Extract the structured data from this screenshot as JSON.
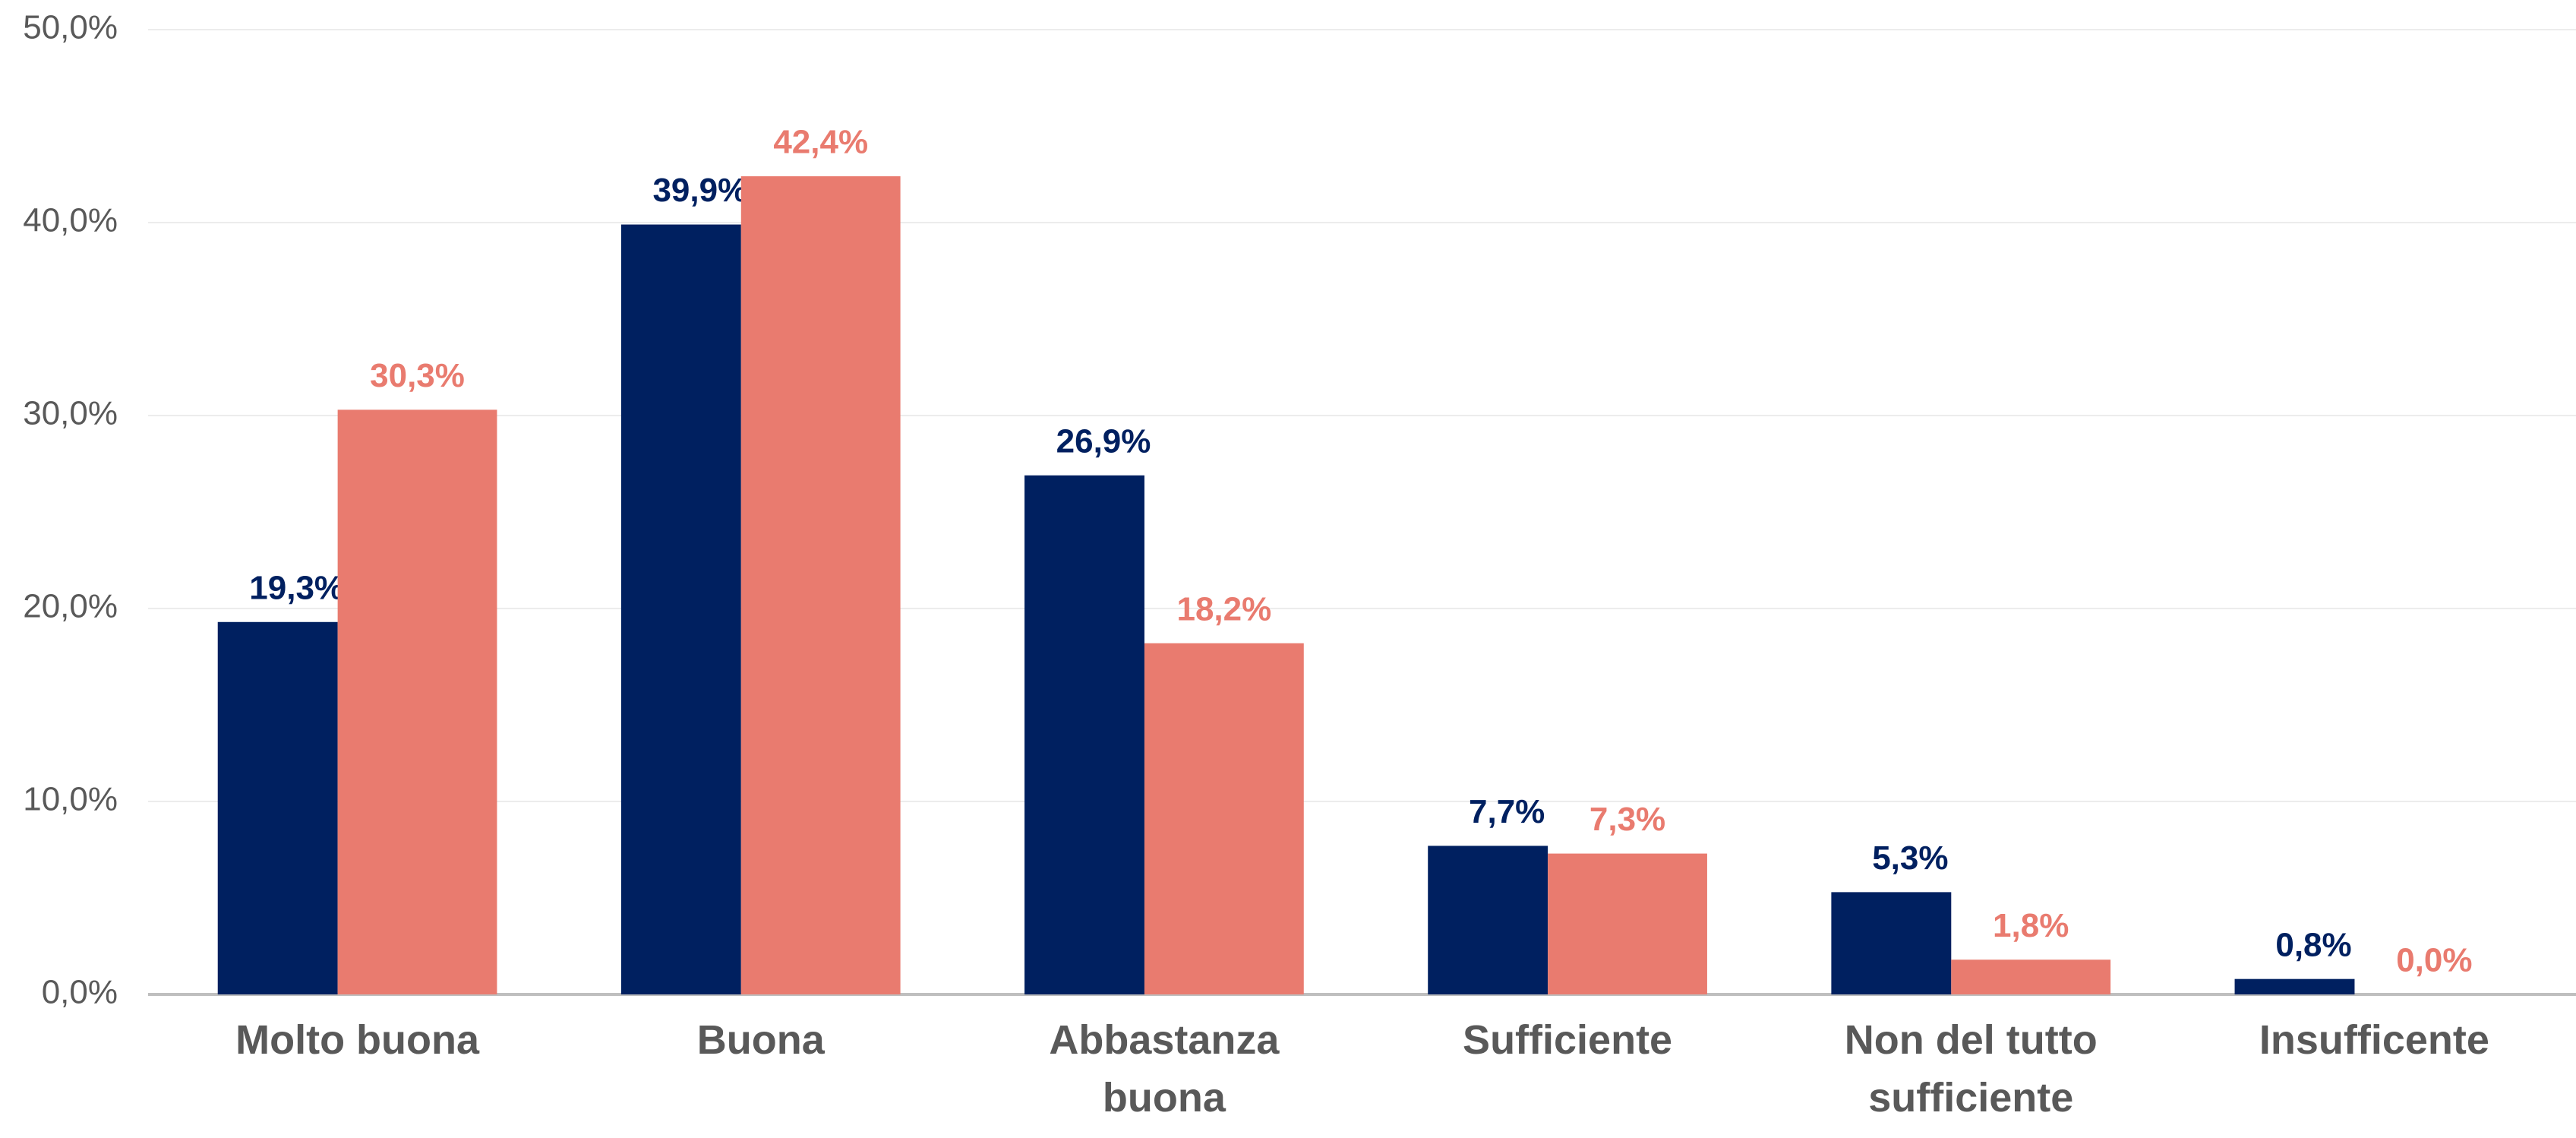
{
  "chart_data": {
    "type": "bar",
    "categories": [
      "Molto buona",
      "Buona",
      "Abbastanza buona",
      "Sufficiente",
      "Non del tutto sufficiente",
      "Insufficente"
    ],
    "series": [
      {
        "color": "#002060",
        "values": [
          19.3,
          39.9,
          26.9,
          7.7,
          5.3,
          0.8
        ],
        "value_labels": [
          "19,3%",
          "39,9%",
          "26,9%",
          "7,7%",
          "5,3%",
          "0,8%"
        ]
      },
      {
        "color": "#E97B6F",
        "values": [
          30.3,
          42.4,
          18.2,
          7.3,
          1.8,
          0.0
        ],
        "value_labels": [
          "30,3%",
          "42,4%",
          "18,2%",
          "7,3%",
          "1,8%",
          "0,0%"
        ]
      }
    ],
    "ylim": [
      0,
      50
    ],
    "yticks": [
      {
        "value": 0,
        "label": "0,0%"
      },
      {
        "value": 10,
        "label": "10,0%"
      },
      {
        "value": 20,
        "label": "20,0%"
      },
      {
        "value": 30,
        "label": "30,0%"
      },
      {
        "value": 40,
        "label": "40,0%"
      },
      {
        "value": 50,
        "label": "50,0%"
      }
    ],
    "grid": true
  }
}
